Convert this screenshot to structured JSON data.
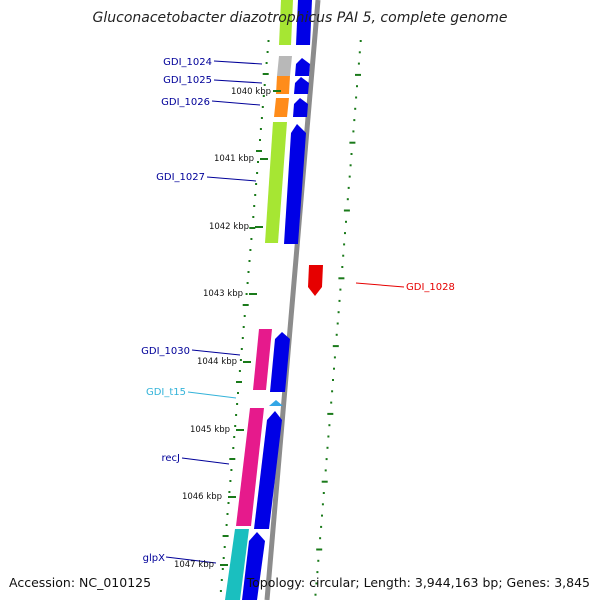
{
  "title": "Gluconacetobacter diazotrophicus PAI 5, complete genome",
  "footer": {
    "accession": "Accession: NC_010125",
    "topology": "Topology: circular; Length: 3,944,163 bp; Genes: 3,845"
  },
  "colors": {
    "backbone": "#8c8c8c",
    "cds_forward": "#0000e6",
    "cog_unassigned": "#b8b8b8",
    "cog_orange": "#ff8c1a",
    "cog_green": "#a6e633",
    "cog_pink": "#e61a8c",
    "cog_cyan": "#1abfbf",
    "cds_reverse": "#e60000",
    "trna": "#33a6e6",
    "ticks": "#1a7a1a",
    "label_blue": "#000099",
    "label_red": "#e60000",
    "label_cyan": "#33b3d9"
  },
  "scale_labels": [
    "1040 kbp",
    "1041 kbp",
    "1042 kbp",
    "1043 kbp",
    "1044 kbp",
    "1045 kbp",
    "1046 kbp",
    "1047 kbp"
  ],
  "genes": [
    {
      "name": "GDI_1024",
      "color": "label_blue"
    },
    {
      "name": "GDI_1025",
      "color": "label_blue"
    },
    {
      "name": "GDI_1026",
      "color": "label_blue"
    },
    {
      "name": "GDI_1027",
      "color": "label_blue"
    },
    {
      "name": "GDI_1028",
      "color": "label_red"
    },
    {
      "name": "GDI_1030",
      "color": "label_blue"
    },
    {
      "name": "GDI_t15",
      "color": "label_cyan"
    },
    {
      "name": "recJ",
      "color": "label_blue"
    },
    {
      "name": "glpX",
      "color": "label_blue"
    }
  ]
}
